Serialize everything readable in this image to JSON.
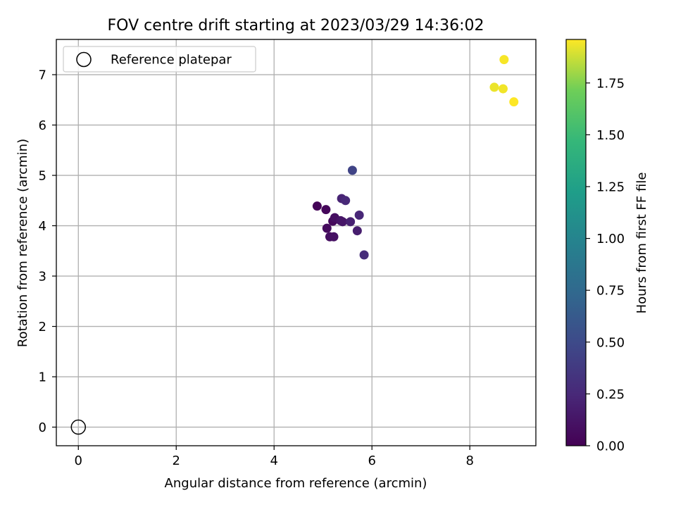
{
  "chart_data": {
    "type": "scatter",
    "title": "FOV centre drift starting at 2023/03/29 14:36:02",
    "xlabel": "Angular distance from reference (arcmin)",
    "ylabel": "Rotation from reference (arcmin)",
    "xlim": [
      -0.45,
      9.35
    ],
    "ylim": [
      -0.37,
      7.7
    ],
    "xticks": [
      0,
      2,
      4,
      6,
      8
    ],
    "yticks": [
      0,
      1,
      2,
      3,
      4,
      5,
      6,
      7
    ],
    "grid": true,
    "legend": {
      "position": "top-left",
      "entries": [
        "Reference platepar"
      ]
    },
    "reference_point": {
      "name": "Reference platepar",
      "x": 0,
      "y": 0
    },
    "series": [
      {
        "points": [
          {
            "x": 4.88,
            "y": 4.39,
            "t": 0.02
          },
          {
            "x": 5.06,
            "y": 4.32,
            "t": 0.04
          },
          {
            "x": 5.08,
            "y": 3.95,
            "t": 0.06
          },
          {
            "x": 5.14,
            "y": 3.78,
            "t": 0.08
          },
          {
            "x": 5.2,
            "y": 4.09,
            "t": 0.05
          },
          {
            "x": 5.22,
            "y": 3.78,
            "t": 0.1
          },
          {
            "x": 5.24,
            "y": 4.16,
            "t": 0.09
          },
          {
            "x": 5.36,
            "y": 4.1,
            "t": 0.12
          },
          {
            "x": 5.4,
            "y": 4.08,
            "t": 0.13
          },
          {
            "x": 5.38,
            "y": 4.54,
            "t": 0.22
          },
          {
            "x": 5.46,
            "y": 4.5,
            "t": 0.25
          },
          {
            "x": 5.56,
            "y": 4.08,
            "t": 0.2
          },
          {
            "x": 5.6,
            "y": 5.1,
            "t": 0.45
          },
          {
            "x": 5.7,
            "y": 3.9,
            "t": 0.18
          },
          {
            "x": 5.74,
            "y": 4.21,
            "t": 0.24
          },
          {
            "x": 5.84,
            "y": 3.42,
            "t": 0.28
          },
          {
            "x": 8.5,
            "y": 6.75,
            "t": 1.93
          },
          {
            "x": 8.7,
            "y": 7.3,
            "t": 1.95
          },
          {
            "x": 8.68,
            "y": 6.72,
            "t": 1.94
          },
          {
            "x": 8.9,
            "y": 6.46,
            "t": 1.96
          }
        ]
      }
    ],
    "colorbar": {
      "label": "Hours from first FF file",
      "colormap": "viridis",
      "min": 0.0,
      "max": 1.96,
      "ticks": [
        "0.00",
        "0.25",
        "0.50",
        "0.75",
        "1.00",
        "1.25",
        "1.50",
        "1.75"
      ]
    }
  }
}
